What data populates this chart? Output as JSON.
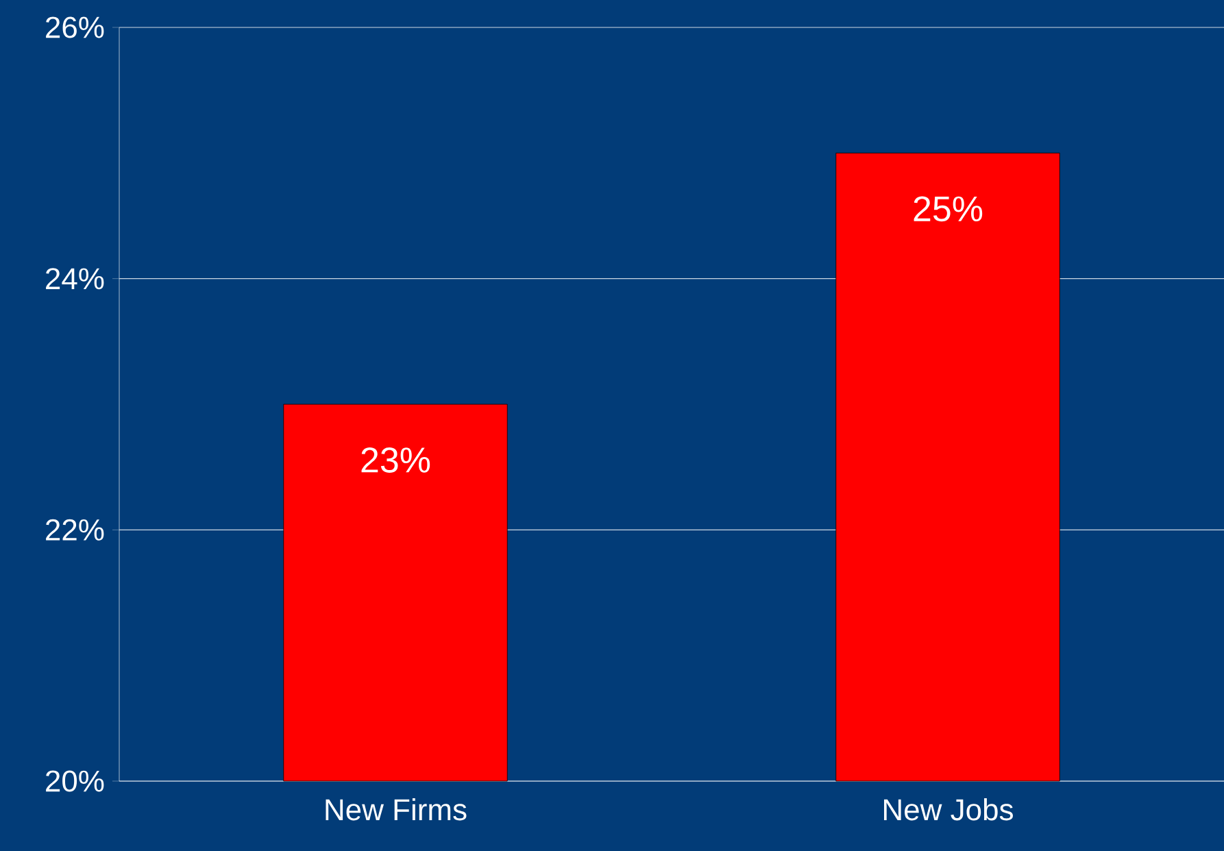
{
  "chart_data": {
    "type": "bar",
    "categories": [
      "New Firms",
      "New Jobs"
    ],
    "values": [
      23,
      25
    ],
    "color": "#ff0000",
    "value_labels": [
      "23%",
      "25%"
    ],
    "ylim": [
      20,
      26
    ],
    "yticks": [
      {
        "value": 20,
        "label": "20%"
      },
      {
        "value": 22,
        "label": "22%"
      },
      {
        "value": 24,
        "label": "24%"
      },
      {
        "value": 26,
        "label": "26%"
      }
    ],
    "grid": "y"
  }
}
